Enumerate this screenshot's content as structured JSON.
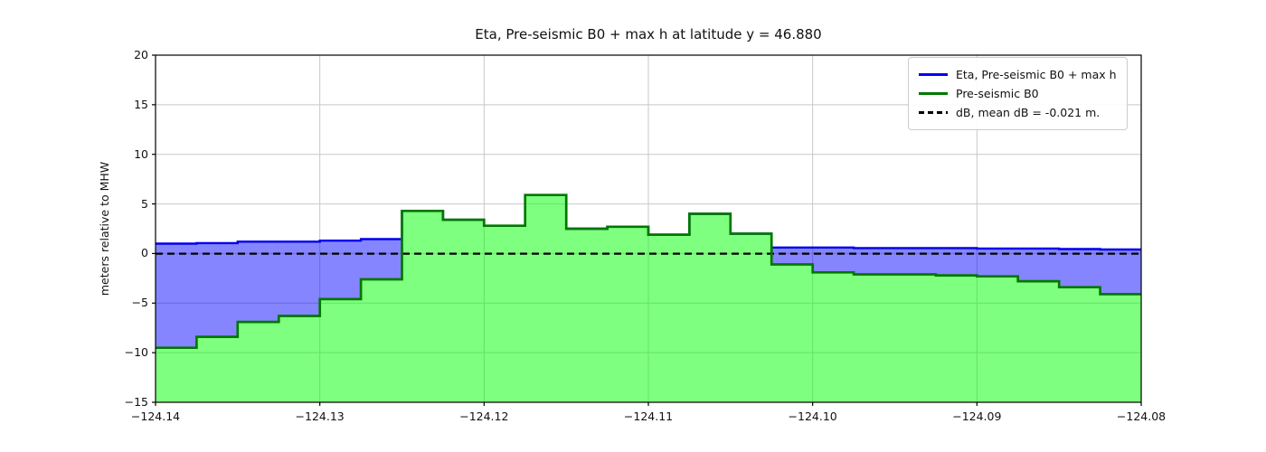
{
  "title": "Eta, Pre-seismic B0 + max h at latitude y = 46.880",
  "axes": {
    "ylabel": "meters relative to MHW",
    "xlim": [
      -124.14,
      -124.08
    ],
    "ylim": [
      -15,
      20
    ],
    "xticks": [
      -124.14,
      -124.13,
      -124.12,
      -124.11,
      -124.1,
      -124.09,
      -124.08
    ],
    "xtick_labels": [
      "−124.14",
      "−124.13",
      "−124.12",
      "−124.11",
      "−124.10",
      "−124.09",
      "−124.08"
    ],
    "yticks": [
      20,
      15,
      10,
      5,
      0,
      -5,
      -10,
      -15
    ],
    "ytick_labels": [
      "20",
      "15",
      "10",
      "5",
      "0",
      "−5",
      "−10",
      "−15"
    ],
    "grid_color": "#c8c8c8",
    "spine_color": "#000000"
  },
  "legend": {
    "items": [
      {
        "label": "Eta, Pre-seismic B0 + max h",
        "color": "#0000ee",
        "style": "solid"
      },
      {
        "label": "Pre-seismic B0",
        "color": "#007800",
        "style": "solid"
      },
      {
        "label": "dB, mean dB = -0.021 m.",
        "color": "#000000",
        "style": "dashed"
      }
    ]
  },
  "chart_data": {
    "type": "area",
    "title": "Eta, Pre-seismic B0 + max h at latitude y = 46.880",
    "xlabel": "",
    "ylabel": "meters relative to MHW",
    "xlim": [
      -124.14,
      -124.08
    ],
    "ylim": [
      -15,
      20
    ],
    "grid": true,
    "legend_position": "upper right",
    "x_edges": [
      -124.14,
      -124.1375,
      -124.135,
      -124.1325,
      -124.13,
      -124.1275,
      -124.125,
      -124.1225,
      -124.12,
      -124.1175,
      -124.115,
      -124.1125,
      -124.11,
      -124.1075,
      -124.105,
      -124.1025,
      -124.1,
      -124.0975,
      -124.095,
      -124.0925,
      -124.09,
      -124.0875,
      -124.085,
      -124.0825,
      -124.08
    ],
    "series": [
      {
        "name": "Eta, Pre-seismic B0 + max h",
        "type": "step-line",
        "color": "#0000ee",
        "fill_between_b0": "rgba(0,0,255,0.48)",
        "values": [
          1.0,
          1.05,
          1.2,
          1.2,
          1.3,
          1.45,
          4.3,
          3.4,
          2.8,
          5.9,
          2.5,
          2.7,
          1.9,
          4.0,
          2.0,
          0.6,
          0.6,
          0.55,
          0.55,
          0.55,
          0.5,
          0.5,
          0.45,
          0.4
        ]
      },
      {
        "name": "Pre-seismic B0",
        "type": "step-area",
        "color": "#007800",
        "fill": "rgba(0,255,0,0.5)",
        "fill_to": -15,
        "values": [
          -9.5,
          -8.4,
          -6.9,
          -6.3,
          -4.6,
          -2.6,
          4.3,
          3.4,
          2.8,
          5.9,
          2.5,
          2.7,
          1.9,
          4.0,
          2.0,
          -1.1,
          -1.9,
          -2.1,
          -2.1,
          -2.2,
          -2.3,
          -2.8,
          -3.4,
          -4.1
        ]
      },
      {
        "name": "dB, mean dB = -0.021 m.",
        "type": "hline",
        "color": "#000000",
        "dash": [
          8,
          5
        ],
        "value": -0.021
      }
    ]
  }
}
